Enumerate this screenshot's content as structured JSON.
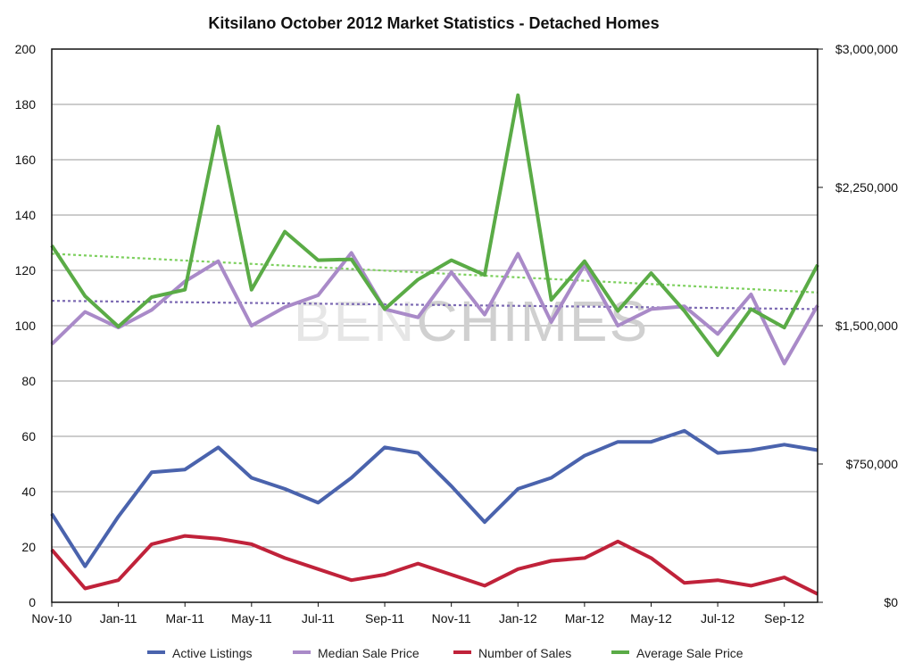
{
  "chart_data": {
    "type": "line",
    "title": "Kitsilano October 2012 Market Statistics - Detached Homes",
    "watermark": {
      "part1": "BEN",
      "part2": "CHIMES"
    },
    "x_tick_labels": [
      "Nov-10",
      "Jan-11",
      "Mar-11",
      "May-11",
      "Jul-11",
      "Sep-11",
      "Nov-11",
      "Jan-12",
      "Mar-12",
      "May-12",
      "Jul-12",
      "Sep-12"
    ],
    "months": [
      "Nov-10",
      "Dec-10",
      "Jan-11",
      "Feb-11",
      "Mar-11",
      "Apr-11",
      "May-11",
      "Jun-11",
      "Jul-11",
      "Aug-11",
      "Sep-11",
      "Oct-11",
      "Nov-11",
      "Dec-11",
      "Jan-12",
      "Feb-12",
      "Mar-12",
      "Apr-12",
      "May-12",
      "Jun-12",
      "Jul-12",
      "Aug-12",
      "Sep-12",
      "Oct-12"
    ],
    "y_left": {
      "min": 0,
      "max": 200,
      "ticks": [
        "0",
        "20",
        "40",
        "60",
        "80",
        "100",
        "120",
        "140",
        "160",
        "180",
        "200"
      ]
    },
    "y_right": {
      "min": 0,
      "max": 3000000,
      "ticks": [
        "$0",
        "$750,000",
        "$1,500,000",
        "$2,250,000",
        "$3,000,000"
      ]
    },
    "grid": true,
    "legend_position": "bottom",
    "series": [
      {
        "name": "Active Listings",
        "axis": "left",
        "color": "#4a63ad",
        "values": [
          32,
          13,
          31,
          47,
          48,
          56,
          45,
          41,
          36,
          45,
          56,
          54,
          42,
          29,
          41,
          45,
          53,
          58,
          58,
          62,
          54,
          55,
          57,
          55
        ]
      },
      {
        "name": "Median Sale Price",
        "axis": "right",
        "color": "#a98ac8",
        "values": [
          1400000,
          1575000,
          1490000,
          1585000,
          1740000,
          1850000,
          1500000,
          1600000,
          1665000,
          1895000,
          1590000,
          1545000,
          1790000,
          1560000,
          1890000,
          1520000,
          1830000,
          1500000,
          1590000,
          1605000,
          1455000,
          1670000,
          1295000,
          1610000
        ]
      },
      {
        "name": "Number of Sales",
        "axis": "left",
        "color": "#c0223a",
        "values": [
          19,
          5,
          8,
          21,
          24,
          23,
          21,
          16,
          12,
          8,
          10,
          14,
          10,
          6,
          12,
          15,
          16,
          22,
          16,
          7,
          8,
          6,
          9,
          3
        ]
      },
      {
        "name": "Average Sale Price",
        "axis": "right",
        "color": "#5aab46",
        "values": [
          1935000,
          1660000,
          1495000,
          1655000,
          1695000,
          2580000,
          1695000,
          2010000,
          1855000,
          1860000,
          1590000,
          1750000,
          1855000,
          1775000,
          2750000,
          1640000,
          1850000,
          1580000,
          1785000,
          1580000,
          1340000,
          1590000,
          1490000,
          1830000
        ]
      }
    ],
    "trendlines": [
      {
        "series": "Average Sale Price",
        "color": "#7dd05e",
        "start": 1890000,
        "end": 1680000
      },
      {
        "series": "Median Sale Price",
        "color": "#7c6ab3",
        "start": 1635000,
        "end": 1590000
      }
    ]
  }
}
